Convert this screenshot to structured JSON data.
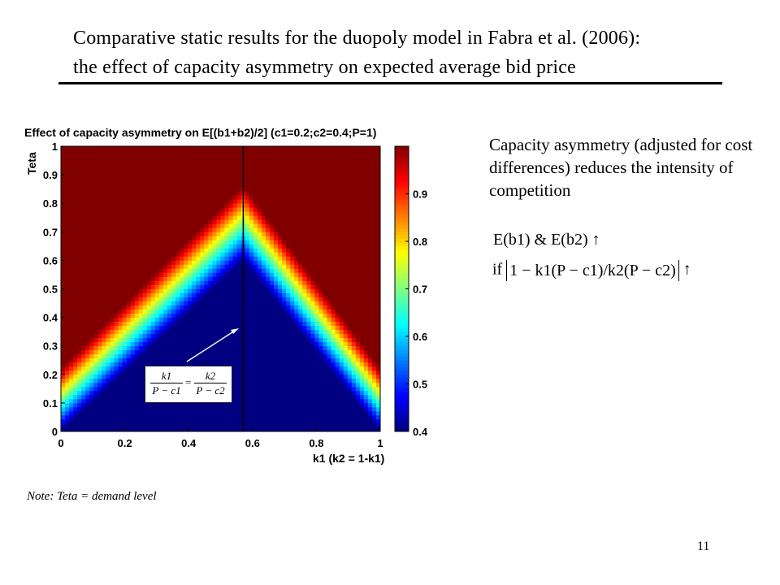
{
  "slide": {
    "title_line1": "Comparative static results for the duopoly model in Fabra et al. (2006):",
    "title_line2": "the effect of capacity asymmetry on expected average bid price",
    "description": "Capacity asymmetry (adjusted for cost differences) reduces the intensity of competition",
    "equation1": "E(b1) & E(b2) ↑",
    "equation2_prefix": "if",
    "equation2_body": "1 − k1(P − c1)/k2(P − c2)",
    "equation2_arrow": "↑",
    "note": "Note: Teta = demand level",
    "page_number": "11",
    "annotation_formula": {
      "num1": "k1",
      "den1": "P − c1",
      "num2": "k2",
      "den2": "P − c2",
      "eq": "="
    }
  },
  "chart_data": {
    "type": "heatmap",
    "title": "Effect of capacity asymmetry on E[(b1+b2)/2] (c1=0.2;c2=0.4;P=1)",
    "xlabel": "k1 (k2 = 1-k1)",
    "ylabel": "Teta",
    "xlim": [
      0,
      1
    ],
    "ylim": [
      0,
      1
    ],
    "x_ticks": [
      0,
      0.2,
      0.4,
      0.6,
      0.8,
      1
    ],
    "x_tick_labels": [
      "0",
      "0.2",
      "0.4",
      "0.6",
      "0.8",
      "1"
    ],
    "y_ticks": [
      0,
      0.1,
      0.2,
      0.3,
      0.4,
      0.5,
      0.6,
      0.7,
      0.8,
      0.9,
      1
    ],
    "y_tick_labels": [
      "0",
      "0.1",
      "0.2",
      "0.3",
      "0.4",
      "0.5",
      "0.6",
      "0.7",
      "0.8",
      "0.9",
      "1"
    ],
    "colorbar_range": [
      0.4,
      1
    ],
    "colorbar_ticks": [
      0.4,
      0.5,
      0.6,
      0.7,
      0.8,
      0.9
    ],
    "colorbar_tick_labels": [
      "0.4",
      "0.5",
      "0.6",
      "0.7",
      "0.8",
      "0.9"
    ],
    "colormap": "jet",
    "vertical_line_x": 0.571,
    "region_boundary": {
      "peak": {
        "k1": 0.571,
        "teta": 0.6
      },
      "left_edge": {
        "k1": 0,
        "teta": 0
      },
      "right_edge": {
        "k1": 1,
        "teta": 0
      },
      "low_value": 0.4,
      "high_value": 1
    },
    "grid": false,
    "legend": "none"
  }
}
